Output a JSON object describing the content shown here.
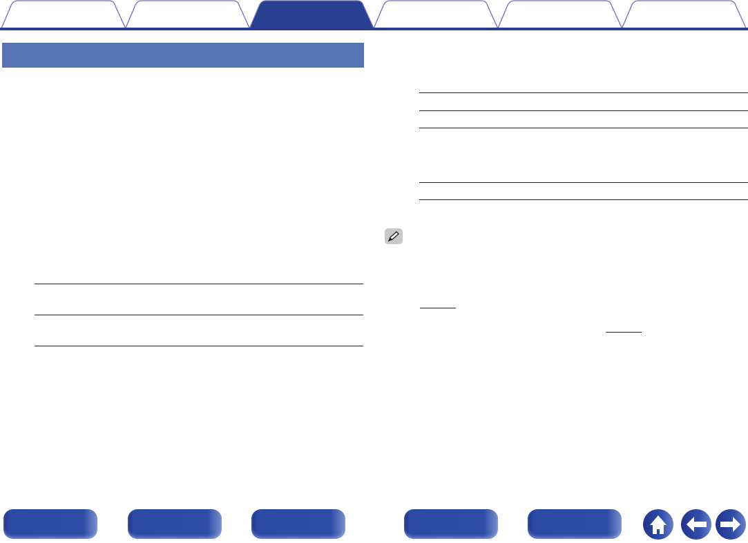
{
  "colors": {
    "tab_active": "#2b3f91",
    "tab_outline": "#6e6fbd",
    "tab_bar": "#2b3f91",
    "section_header": "#5773b6",
    "nav_button": "#2c4ca6"
  },
  "tabs": [
    {
      "active": false
    },
    {
      "active": false
    },
    {
      "active": true
    },
    {
      "active": false
    },
    {
      "active": false
    },
    {
      "active": false
    }
  ],
  "icons": {
    "note": "pencil-icon",
    "home": "home-icon",
    "back": "arrow-left-icon",
    "forward": "arrow-right-icon"
  }
}
